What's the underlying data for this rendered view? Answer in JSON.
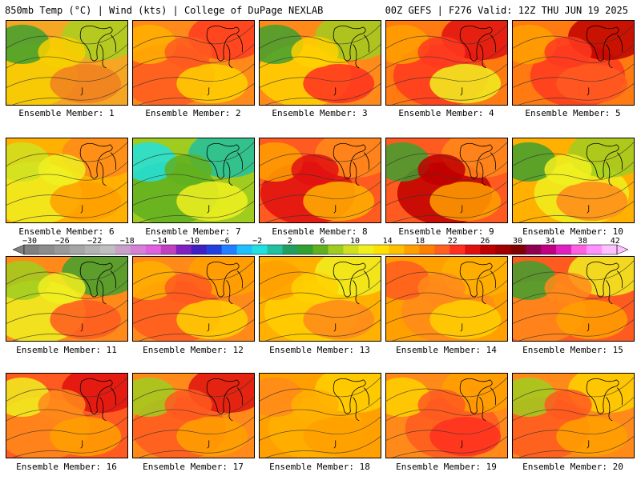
{
  "header": {
    "left_title": "850mb Temp (°C) | Wind (kts) | College of DuPage NEXLAB",
    "right_title": "00Z GEFS | F276 Valid: 12Z THU JUN 19 2025"
  },
  "colorbar": {
    "tick_labels": [
      "−30",
      "−26",
      "−22",
      "−18",
      "−14",
      "−10",
      "−6",
      "−2",
      "2",
      "6",
      "10",
      "14",
      "18",
      "22",
      "26",
      "30",
      "34",
      "38",
      "42"
    ],
    "colors": [
      "#808080",
      "#8c8c8c",
      "#999999",
      "#a6a6a6",
      "#b3b3b3",
      "#bfbfbf",
      "#c8a2c8",
      "#d580d5",
      "#e060e0",
      "#c040c0",
      "#8020c0",
      "#4020c0",
      "#2040e0",
      "#2080ff",
      "#20c0ff",
      "#20e0e0",
      "#20c0a0",
      "#20a060",
      "#30a030",
      "#60b020",
      "#a0cc20",
      "#d0e020",
      "#f0f020",
      "#ffe000",
      "#ffc000",
      "#ffa000",
      "#ff8000",
      "#ff6020",
      "#ff3020",
      "#e01010",
      "#c00000",
      "#a00000",
      "#800000",
      "#900050",
      "#c00080",
      "#e020c0",
      "#ff60e0",
      "#ff90ff",
      "#ffc0ff"
    ]
  },
  "panels": [
    {
      "label": "Ensemble Member: 1"
    },
    {
      "label": "Ensemble Member: 2"
    },
    {
      "label": "Ensemble Member: 3"
    },
    {
      "label": "Ensemble Member: 4"
    },
    {
      "label": "Ensemble Member: 5"
    },
    {
      "label": "Ensemble Member: 6"
    },
    {
      "label": "Ensemble Member: 7"
    },
    {
      "label": "Ensemble Member: 8"
    },
    {
      "label": "Ensemble Member: 9"
    },
    {
      "label": "Ensemble Member: 10"
    },
    {
      "label": "Ensemble Member: 11"
    },
    {
      "label": "Ensemble Member: 12"
    },
    {
      "label": "Ensemble Member: 13"
    },
    {
      "label": "Ensemble Member: 14"
    },
    {
      "label": "Ensemble Member: 15"
    },
    {
      "label": "Ensemble Member: 16"
    },
    {
      "label": "Ensemble Member: 17"
    },
    {
      "label": "Ensemble Member: 18"
    },
    {
      "label": "Ensemble Member: 19"
    },
    {
      "label": "Ensemble Member: 20"
    }
  ]
}
